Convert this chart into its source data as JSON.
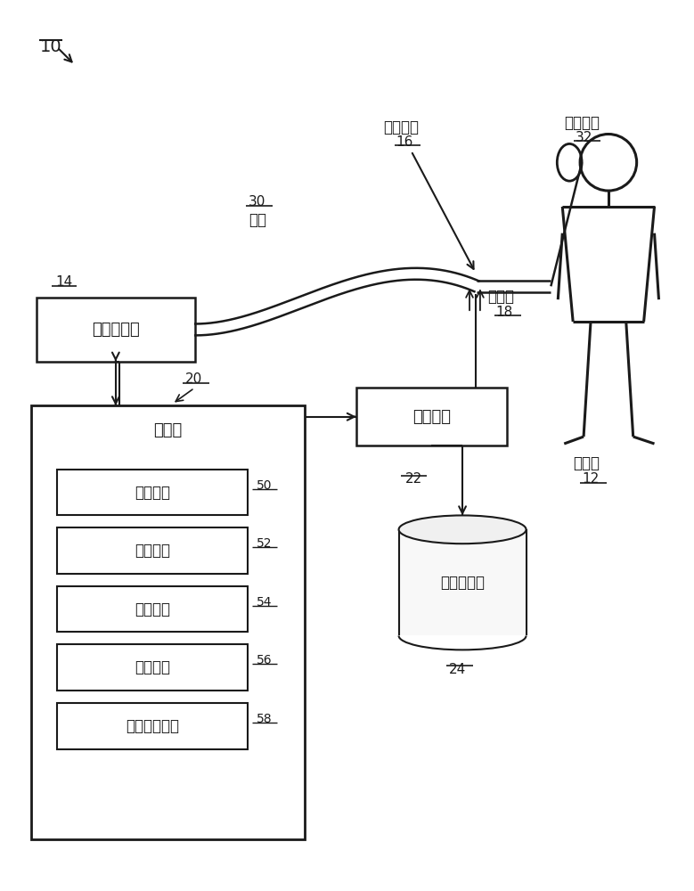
{
  "bg_color": "#ffffff",
  "line_color": "#1a1a1a",
  "title": "10",
  "pg_label": "压力发生器",
  "pg_num": "14",
  "conduit_num": "30",
  "conduit_label": "导管",
  "obj_iface_label": "对象接口",
  "obj_iface_num": "16",
  "sensor_label": "传感器",
  "sensor_num": "18",
  "iface_dev_label": "接口装置",
  "iface_dev_num": "32",
  "ui_label": "用户接口",
  "ui_num": "22",
  "proc_label": "处理器",
  "proc_num": "20",
  "stor_label": "电子存储器",
  "stor_num": "24",
  "subject_label": "受试者",
  "subject_num": "12",
  "modules": [
    {
      "label": "参数模块",
      "num": "50"
    },
    {
      "label": "泄露模块",
      "num": "52"
    },
    {
      "label": "控制模块",
      "num": "54"
    },
    {
      "label": "补偿模块",
      "num": "56"
    },
    {
      "label": "补偿限制模块",
      "num": "58"
    }
  ]
}
